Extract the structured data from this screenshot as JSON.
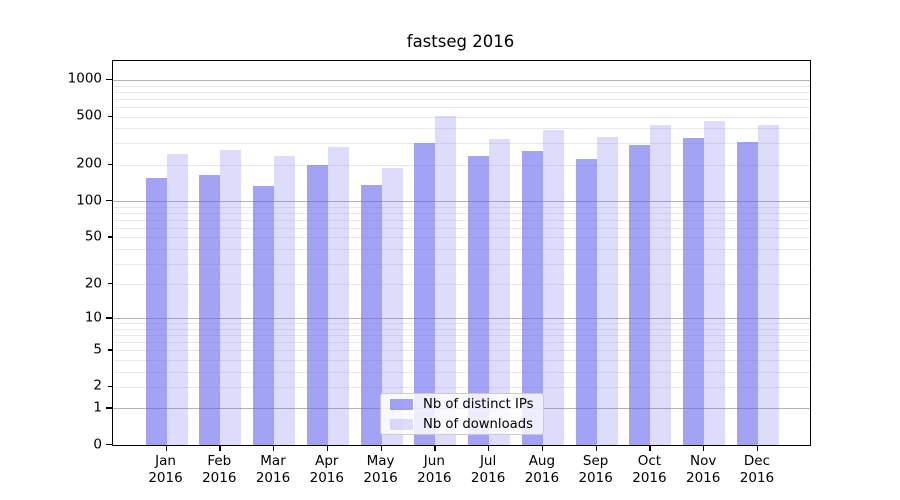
{
  "title": "fastseg 2016",
  "chart_data": {
    "type": "bar",
    "title": "fastseg 2016",
    "categories": [
      "Jan",
      "Feb",
      "Mar",
      "Apr",
      "May",
      "Jun",
      "Jul",
      "Aug",
      "Sep",
      "Oct",
      "Nov",
      "Dec"
    ],
    "x_second_line": "2016",
    "series": [
      {
        "name": "Nb of distinct IPs",
        "base_color": "#6666ee",
        "alpha": 0.6,
        "values": [
          155,
          165,
          134,
          200,
          135,
          305,
          235,
          260,
          225,
          290,
          330,
          310
        ]
      },
      {
        "name": "Nb of downloads",
        "base_color": "#6666ee",
        "alpha": 0.22,
        "values": [
          245,
          265,
          237,
          280,
          188,
          505,
          325,
          385,
          340,
          430,
          460,
          425
        ]
      }
    ],
    "yscale": "log1p",
    "ylim": [
      0,
      1433
    ],
    "ytick_values": [
      1000,
      500,
      200,
      100,
      50,
      20,
      10,
      5,
      2,
      1,
      0
    ],
    "ytick_labels": [
      "1000",
      "500",
      "200",
      "100",
      "50",
      "20",
      "10",
      "5",
      "2",
      "1",
      "0"
    ],
    "ytick_major": [
      1000,
      100,
      10,
      1,
      0
    ],
    "grid_major": [
      1000,
      100,
      10,
      1
    ],
    "grid_minor": [
      2,
      3,
      4,
      5,
      6,
      7,
      8,
      9,
      20,
      30,
      40,
      50,
      60,
      70,
      80,
      90,
      200,
      300,
      400,
      500,
      600,
      700,
      800,
      900
    ],
    "legend_position": "lower center",
    "grid_on": true,
    "colors": {
      "grid_major": "#b2b2b2",
      "grid_minor": "#e9e9e9",
      "spine": "#000000",
      "legend_border": "#cccccc"
    }
  }
}
